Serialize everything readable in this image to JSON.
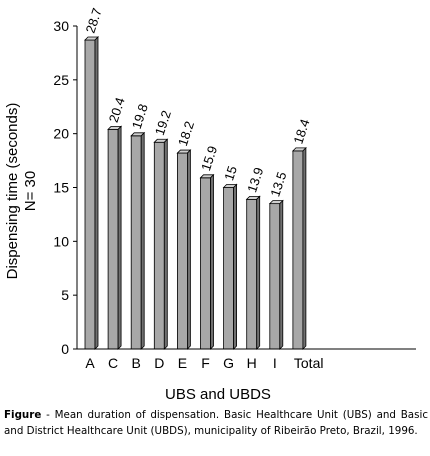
{
  "chart_data": {
    "type": "bar",
    "categories": [
      "A",
      "C",
      "B",
      "D",
      "E",
      "F",
      "G",
      "H",
      "I",
      "Total"
    ],
    "values": [
      28.7,
      20.4,
      19.8,
      19.2,
      18.2,
      15.9,
      15,
      13.9,
      13.5,
      18.4
    ],
    "value_labels": [
      "28.7",
      "20.4",
      "19.8",
      "19.2",
      "18.2",
      "15.9",
      "15",
      "13.9",
      "13.5",
      "18.4"
    ],
    "ylabel_line1": "Dispensing time (seconds)",
    "ylabel_line2": "N= 30",
    "xlabel": "UBS and UBDS",
    "ylim": [
      0,
      30
    ],
    "yticks": [
      "0",
      "5",
      "10",
      "15",
      "20",
      "25",
      "30"
    ],
    "grid": false,
    "bar_color": "#a8a8a8"
  },
  "caption": {
    "label": "Figure",
    "text": " - Mean duration of dispensation. Basic Healthcare Unit (UBS) and Basic and District Healthcare Unit (UBDS), municipality of Ribeirão Preto, Brazil, 1996."
  }
}
